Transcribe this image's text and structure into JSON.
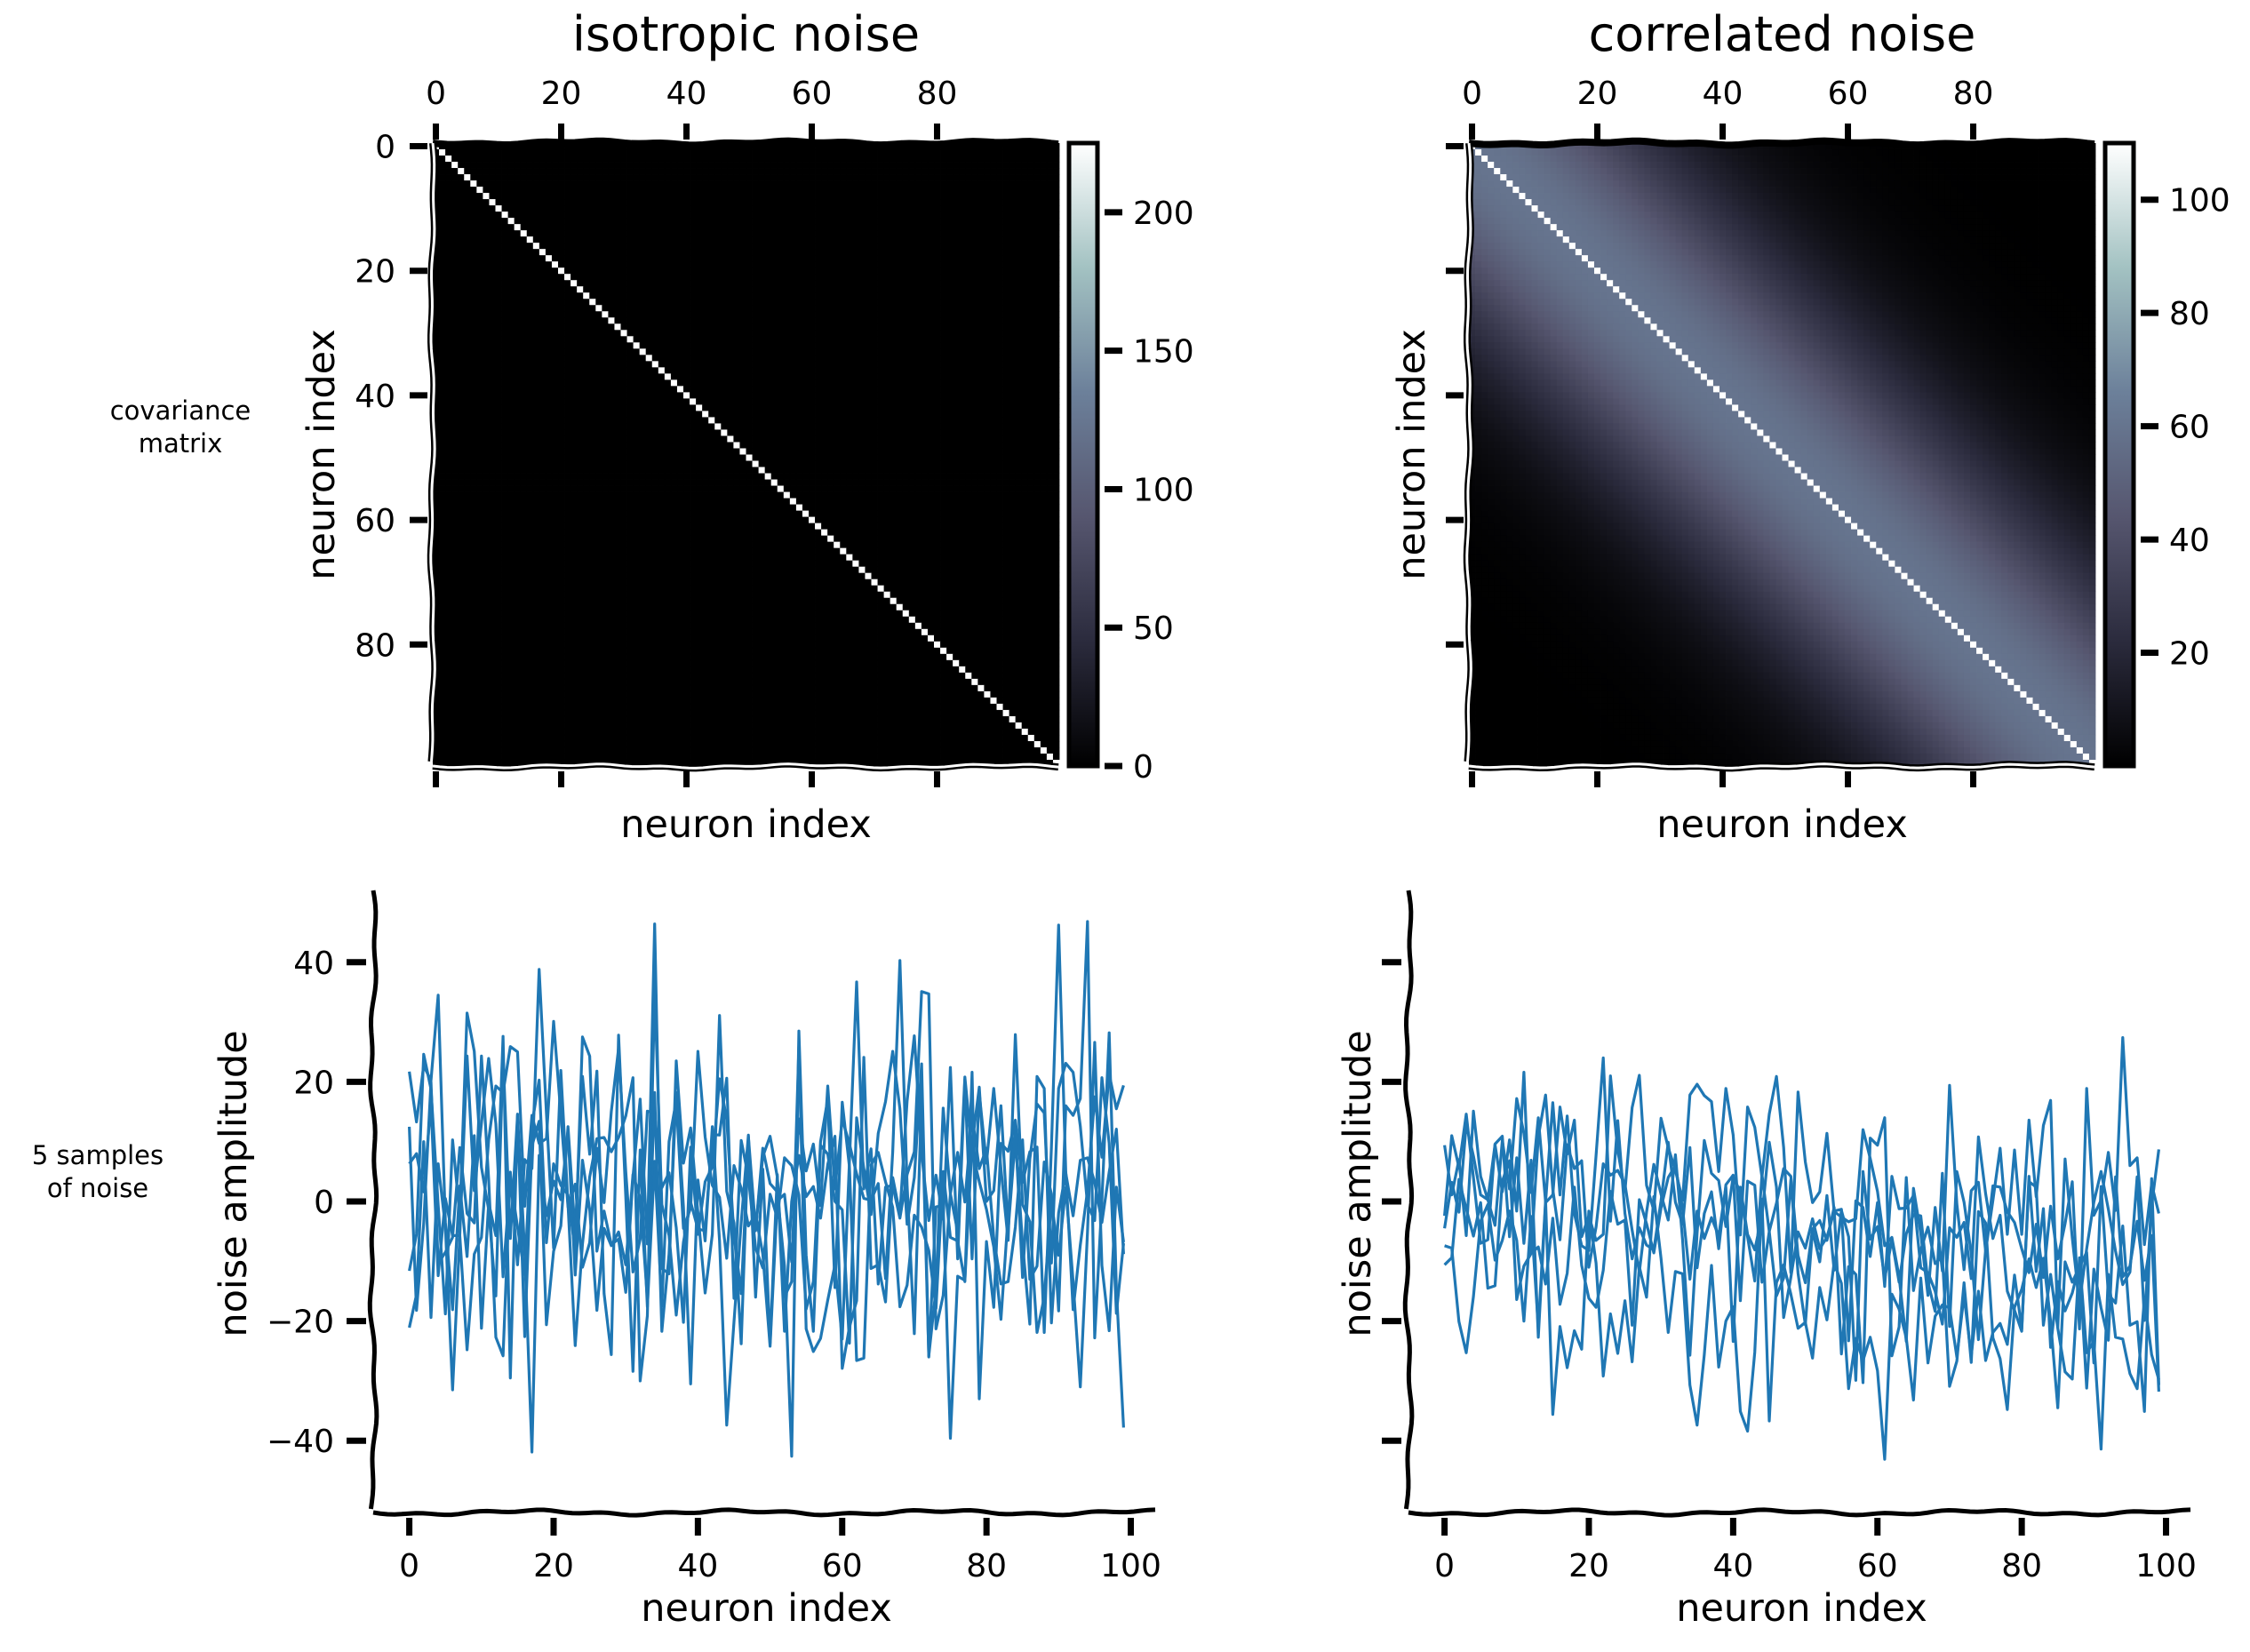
{
  "row_labels": {
    "top": "covariance\nmatrix",
    "bottom": "5 samples\nof noise"
  },
  "colors": {
    "line": "#1f77b4",
    "axis": "#000000",
    "colormap": [
      "#000000",
      "#2b2b3d",
      "#56566f",
      "#6c809a",
      "#a3c2c2",
      "#ffffff"
    ]
  },
  "chart_data": [
    {
      "id": "cov-isotropic",
      "type": "heatmap",
      "title": "isotropic noise",
      "xlabel": "neuron index",
      "ylabel": "neuron index",
      "size": 100,
      "matrix": "diagonal",
      "diag_value": 225,
      "off_diag_value": 0,
      "xticks": [
        0,
        20,
        40,
        60,
        80
      ],
      "yticks": [
        0,
        20,
        40,
        60,
        80
      ],
      "xticklabels": [
        "0",
        "20",
        "40",
        "60",
        "80"
      ],
      "yticklabels": [
        "0",
        "20",
        "40",
        "60",
        "80"
      ],
      "colorbar": {
        "min": 0,
        "max": 225,
        "ticks": [
          0,
          50,
          100,
          150,
          200
        ],
        "ticklabels": [
          "0",
          "50",
          "100",
          "150",
          "200"
        ]
      }
    },
    {
      "id": "cov-correlated",
      "type": "heatmap",
      "title": "correlated noise",
      "xlabel": "neuron index",
      "ylabel": "neuron index",
      "size": 100,
      "matrix": "banded",
      "diag_value": 110,
      "off_diag_near": 60,
      "off_diag_far": 0,
      "xticks": [
        0,
        20,
        40,
        60,
        80
      ],
      "yticks": [
        0,
        20,
        40,
        60,
        80
      ],
      "xticklabels": [
        "0",
        "20",
        "40",
        "60",
        "80"
      ],
      "yticklabels": [],
      "colorbar": {
        "min": 0,
        "max": 110,
        "ticks": [
          20,
          40,
          60,
          80,
          100
        ],
        "ticklabels": [
          "20",
          "40",
          "60",
          "80",
          "100"
        ]
      }
    },
    {
      "id": "samples-isotropic",
      "type": "line",
      "title": "",
      "xlabel": "neuron index",
      "ylabel": "noise amplitude",
      "xlim": [
        -5,
        104
      ],
      "ylim": [
        -52,
        52
      ],
      "xticks": [
        0,
        20,
        40,
        60,
        80,
        100
      ],
      "xticklabels": [
        "0",
        "20",
        "40",
        "60",
        "80",
        "100"
      ],
      "yticks": [
        -40,
        -20,
        0,
        20,
        40
      ],
      "yticklabels": [
        "−40",
        "−20",
        "0",
        "20",
        "40"
      ],
      "n_series": 5,
      "n_points": 100,
      "amplitude": 15,
      "seed": 7,
      "series": []
    },
    {
      "id": "samples-correlated",
      "type": "line",
      "title": "",
      "xlabel": "neuron index",
      "ylabel": "noise amplitude",
      "xlim": [
        -5,
        104
      ],
      "ylim": [
        -52,
        52
      ],
      "xticks": [
        0,
        20,
        40,
        60,
        80,
        100
      ],
      "xticklabels": [
        "0",
        "20",
        "40",
        "60",
        "80",
        "100"
      ],
      "yticks": [
        -40,
        -20,
        0,
        20,
        40
      ],
      "yticklabels": [],
      "n_series": 5,
      "n_points": 100,
      "amplitude": 9,
      "seed": 11,
      "series": []
    }
  ]
}
